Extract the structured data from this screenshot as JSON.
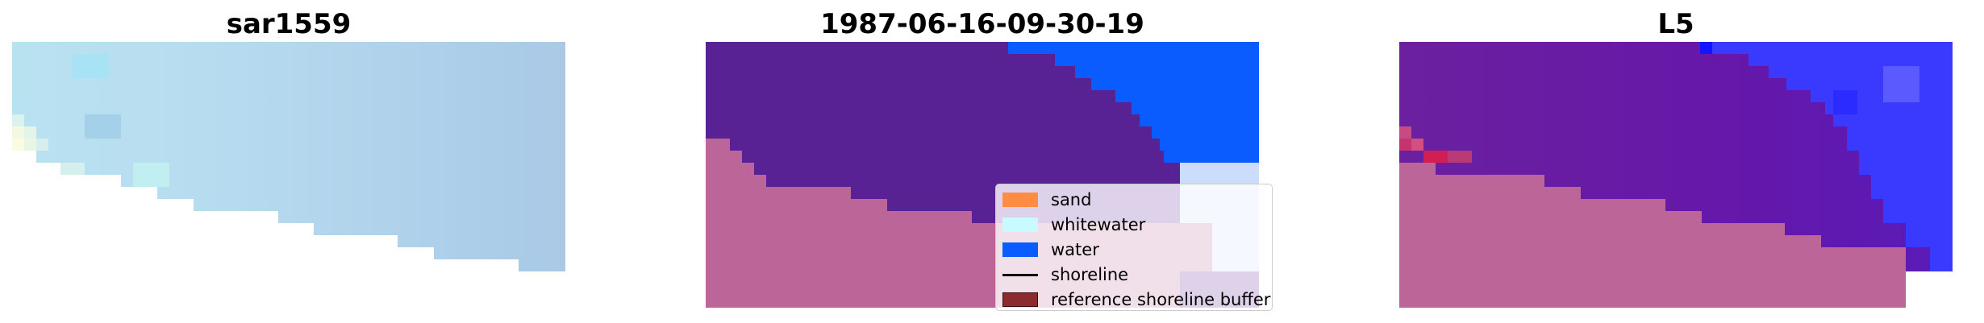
{
  "panels": [
    {
      "title": "sar1559"
    },
    {
      "title": "1987-06-16-09-30-19"
    },
    {
      "title": "L5"
    }
  ],
  "legend": {
    "items": [
      {
        "label": "sand",
        "color": "#ff8c42",
        "kind": "patch"
      },
      {
        "label": "whitewater",
        "color": "#c8fbff",
        "kind": "patch"
      },
      {
        "label": "water",
        "color": "#0a5cff",
        "kind": "patch"
      },
      {
        "label": "shoreline",
        "color": "#000000",
        "kind": "line"
      },
      {
        "label": "reference shoreline buffer",
        "color": "#8b2a2f",
        "kind": "patch"
      }
    ]
  },
  "colors": {
    "land_class": "#582295",
    "water_class": "#0a5cff",
    "buffer_overlay": "#bb6598",
    "rgb_sky_blue": "#aed0ec",
    "l5_purple": "#6a1fa0",
    "l5_blue": "#3a3aff"
  }
}
